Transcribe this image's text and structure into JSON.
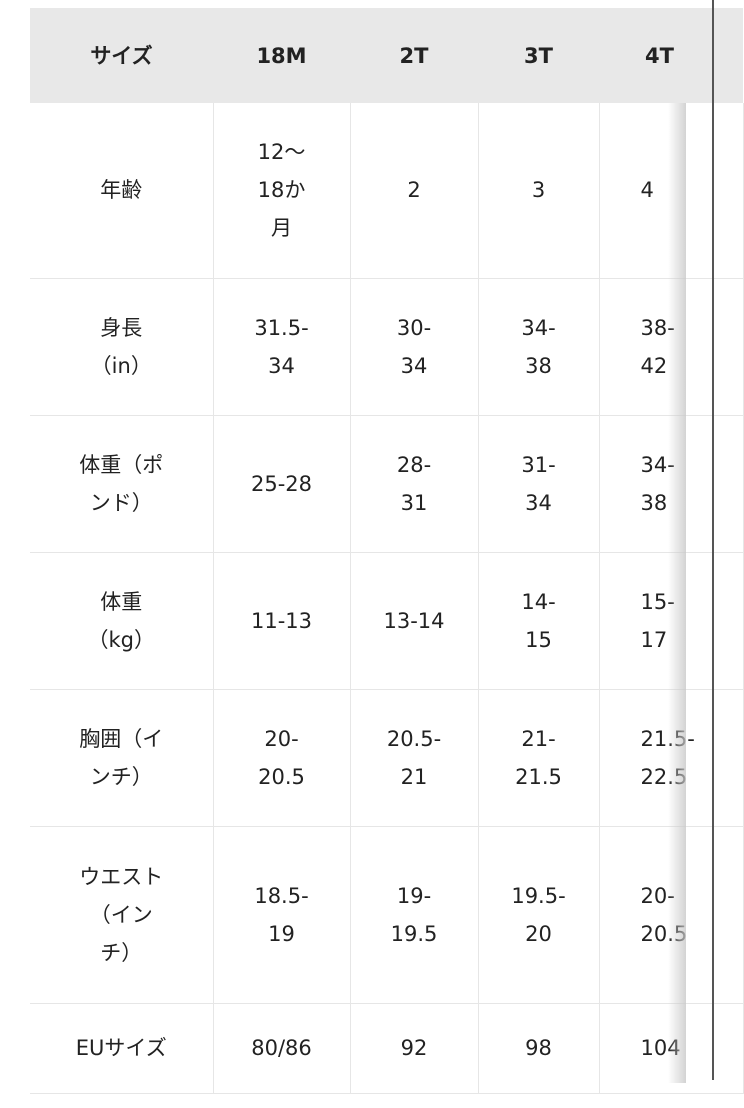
{
  "table": {
    "headers": [
      "サイズ",
      "18M",
      "2T",
      "3T",
      "4T"
    ],
    "rows": [
      [
        "年齢",
        "12〜\n18か\n月",
        "2",
        "3",
        "4"
      ],
      [
        "身長\n（in）",
        "31.5-\n34",
        "30-\n34",
        "34-\n38",
        "38-\n42"
      ],
      [
        "体重（ポ\nンド）",
        "25-28",
        "28-\n31",
        "31-\n34",
        "34-\n38"
      ],
      [
        "体重\n（kg）",
        "11-13",
        "13-14",
        "14-\n15",
        "15-\n17"
      ],
      [
        "胸囲（イ\nンチ）",
        "20-\n20.5",
        "20.5-\n21",
        "21-\n21.5",
        "21.5-\n22.5"
      ],
      [
        "ウエスト\n（イン\nチ）",
        "18.5-\n19",
        "19-\n19.5",
        "19.5-\n20",
        "20-\n20.5"
      ],
      [
        "EUサイズ",
        "80/86",
        "92",
        "98",
        "104"
      ]
    ]
  }
}
